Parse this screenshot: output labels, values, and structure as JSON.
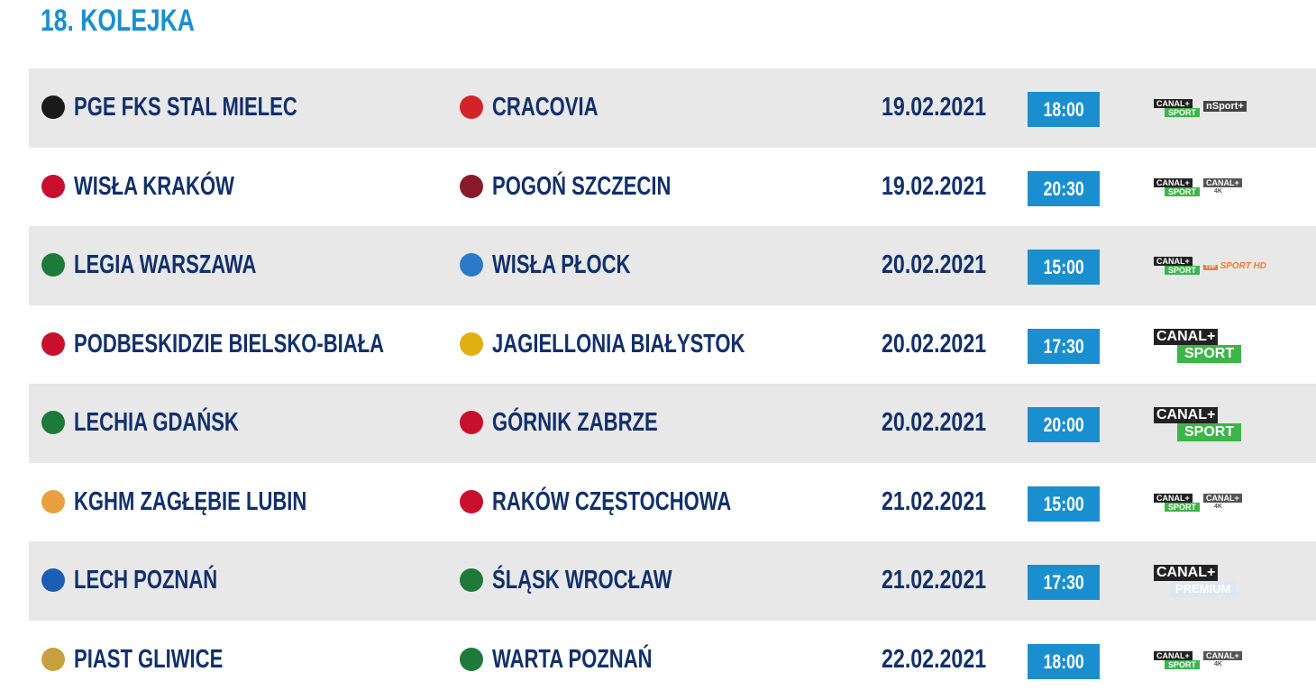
{
  "round_title": "18. KOLEJKA",
  "colors": {
    "accent": "#1a8fd0",
    "team_text": "#12306b",
    "row_alt": "#e8e8e8"
  },
  "matches": [
    {
      "home": "PGE FKS STAL MIELEC",
      "home_crest_color": "#1a1a1a",
      "away": "CRACOVIA",
      "away_crest_color": "#d2232a",
      "date": "19.02.2021",
      "time": "18:00",
      "tv": [
        {
          "type": "canal-sport",
          "top": "CANAL+",
          "bottom": "SPORT"
        },
        {
          "type": "nsport",
          "top": "nSport+"
        }
      ]
    },
    {
      "home": "WISŁA KRAKÓW",
      "home_crest_color": "#c8102e",
      "away": "POGOŃ SZCZECIN",
      "away_crest_color": "#8a1a2a",
      "date": "19.02.2021",
      "time": "20:30",
      "tv": [
        {
          "type": "canal-sport",
          "top": "CANAL+",
          "bottom": "SPORT"
        },
        {
          "type": "canal-4k",
          "top": "CANAL+",
          "bottom": "4K"
        }
      ]
    },
    {
      "home": "LEGIA WARSZAWA",
      "home_crest_color": "#1e7a3a",
      "away": "WISŁA PŁOCK",
      "away_crest_color": "#2a7ac8",
      "date": "20.02.2021",
      "time": "15:00",
      "tv": [
        {
          "type": "canal-sport",
          "top": "CANAL+",
          "bottom": "SPORT"
        },
        {
          "type": "tvp-sport",
          "top": "TVP",
          "bottom": "SPORT HD"
        }
      ]
    },
    {
      "home": "PODBESKIDZIE BIELSKO-BIAŁA",
      "home_crest_color": "#c8102e",
      "away": "JAGIELLONIA BIAŁYSTOK",
      "away_crest_color": "#e0b010",
      "date": "20.02.2021",
      "time": "17:30",
      "tv": [
        {
          "type": "canal-sport-big",
          "top": "CANAL+",
          "bottom": "SPORT"
        }
      ]
    },
    {
      "home": "LECHIA GDAŃSK",
      "home_crest_color": "#1e7a3a",
      "away": "GÓRNIK ZABRZE",
      "away_crest_color": "#c8102e",
      "date": "20.02.2021",
      "time": "20:00",
      "tv": [
        {
          "type": "canal-sport-big",
          "top": "CANAL+",
          "bottom": "SPORT"
        }
      ]
    },
    {
      "home": "KGHM ZAGŁĘBIE LUBIN",
      "home_crest_color": "#e8a040",
      "away": "RAKÓW CZĘSTOCHOWA",
      "away_crest_color": "#c8102e",
      "date": "21.02.2021",
      "time": "15:00",
      "tv": [
        {
          "type": "canal-sport",
          "top": "CANAL+",
          "bottom": "SPORT"
        },
        {
          "type": "canal-4k",
          "top": "CANAL+",
          "bottom": "4K"
        }
      ]
    },
    {
      "home": "LECH POZNAŃ",
      "home_crest_color": "#1a5fb4",
      "away": "ŚLĄSK WROCŁAW",
      "away_crest_color": "#1e7a3a",
      "date": "21.02.2021",
      "time": "17:30",
      "tv": [
        {
          "type": "canal-premium",
          "top": "CANAL+",
          "bottom": "PREMIUM"
        }
      ]
    },
    {
      "home": "PIAST GLIWICE",
      "home_crest_color": "#c8a040",
      "away": "WARTA POZNAŃ",
      "away_crest_color": "#1e7a3a",
      "date": "22.02.2021",
      "time": "18:00",
      "tv": [
        {
          "type": "canal-sport",
          "top": "CANAL+",
          "bottom": "SPORT"
        },
        {
          "type": "canal-4k",
          "top": "CANAL+",
          "bottom": "4K"
        }
      ]
    }
  ]
}
